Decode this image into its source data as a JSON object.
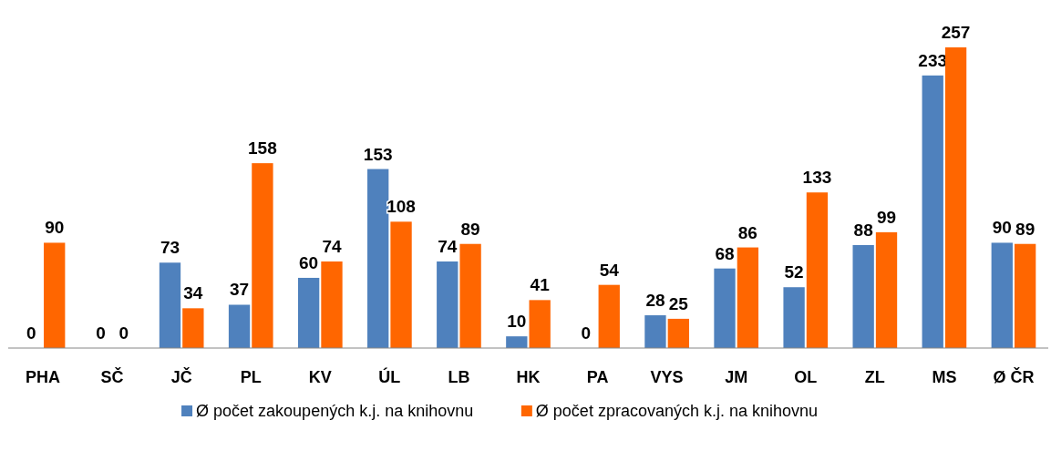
{
  "chart_data": {
    "type": "bar",
    "categories": [
      "PHA",
      "SČ",
      "JČ",
      "PL",
      "KV",
      "ÚL",
      "LB",
      "HK",
      "PA",
      "VYS",
      "JM",
      "OL",
      "ZL",
      "MS",
      "Ø ČR"
    ],
    "series": [
      {
        "name": "Ø počet zakoupených k.j. na knihovnu",
        "color": "#4f81bd",
        "values": [
          0,
          0,
          73,
          37,
          60,
          153,
          74,
          10,
          0,
          28,
          68,
          52,
          88,
          233,
          90
        ]
      },
      {
        "name": "Ø počet zpracovaných k.j. na knihovnu",
        "color": "#ff6600",
        "values": [
          90,
          0,
          34,
          158,
          74,
          108,
          89,
          41,
          54,
          25,
          86,
          133,
          99,
          257,
          89
        ]
      }
    ],
    "data_labels": true,
    "legend": "bottom",
    "grid": false
  }
}
